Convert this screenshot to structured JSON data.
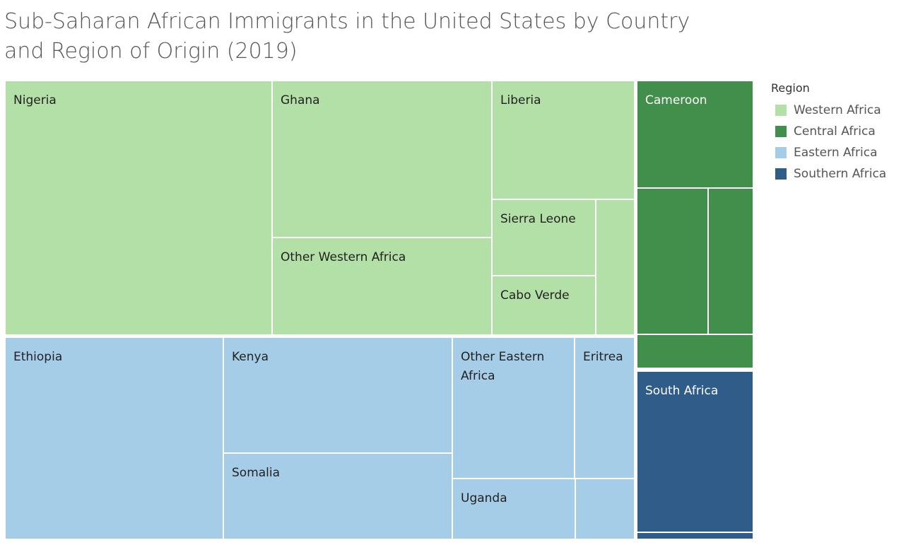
{
  "chart_title": "Sub-Saharan African Immigrants in the United States by Country and Region of Origin (2019)",
  "chart_data": {
    "type": "treemap",
    "title": "Sub-Saharan African Immigrants in the United States by Country and Region of Origin (2019)",
    "legend": {
      "title": "Region",
      "placement": "right",
      "entries": [
        {
          "name": "Western Africa",
          "color": "#b3e0a6"
        },
        {
          "name": "Central Africa",
          "color": "#428f4b"
        },
        {
          "name": "Eastern Africa",
          "color": "#a6cde8"
        },
        {
          "name": "Southern Africa",
          "color": "#305c8a"
        }
      ]
    },
    "cells": [
      {
        "label": "Nigeria",
        "region": "Western Africa"
      },
      {
        "label": "Ghana",
        "region": "Western Africa"
      },
      {
        "label": "Other Western Africa",
        "region": "Western Africa"
      },
      {
        "label": "Liberia",
        "region": "Western Africa"
      },
      {
        "label": "Sierra Leone",
        "region": "Western Africa"
      },
      {
        "label": "Cabo Verde",
        "region": "Western Africa"
      },
      {
        "label": "",
        "region": "Western Africa"
      },
      {
        "label": "Ethiopia",
        "region": "Eastern Africa"
      },
      {
        "label": "Kenya",
        "region": "Eastern Africa"
      },
      {
        "label": "Somalia",
        "region": "Eastern Africa"
      },
      {
        "label": "Other Eastern Africa",
        "region": "Eastern Africa"
      },
      {
        "label": "Eritrea",
        "region": "Eastern Africa"
      },
      {
        "label": "Uganda",
        "region": "Eastern Africa"
      },
      {
        "label": "",
        "region": "Eastern Africa"
      },
      {
        "label": "Cameroon",
        "region": "Central Africa"
      },
      {
        "label": "",
        "region": "Central Africa"
      },
      {
        "label": "",
        "region": "Central Africa"
      },
      {
        "label": "",
        "region": "Central Africa"
      },
      {
        "label": "South Africa",
        "region": "Southern Africa"
      },
      {
        "label": "",
        "region": "Southern Africa"
      }
    ]
  }
}
